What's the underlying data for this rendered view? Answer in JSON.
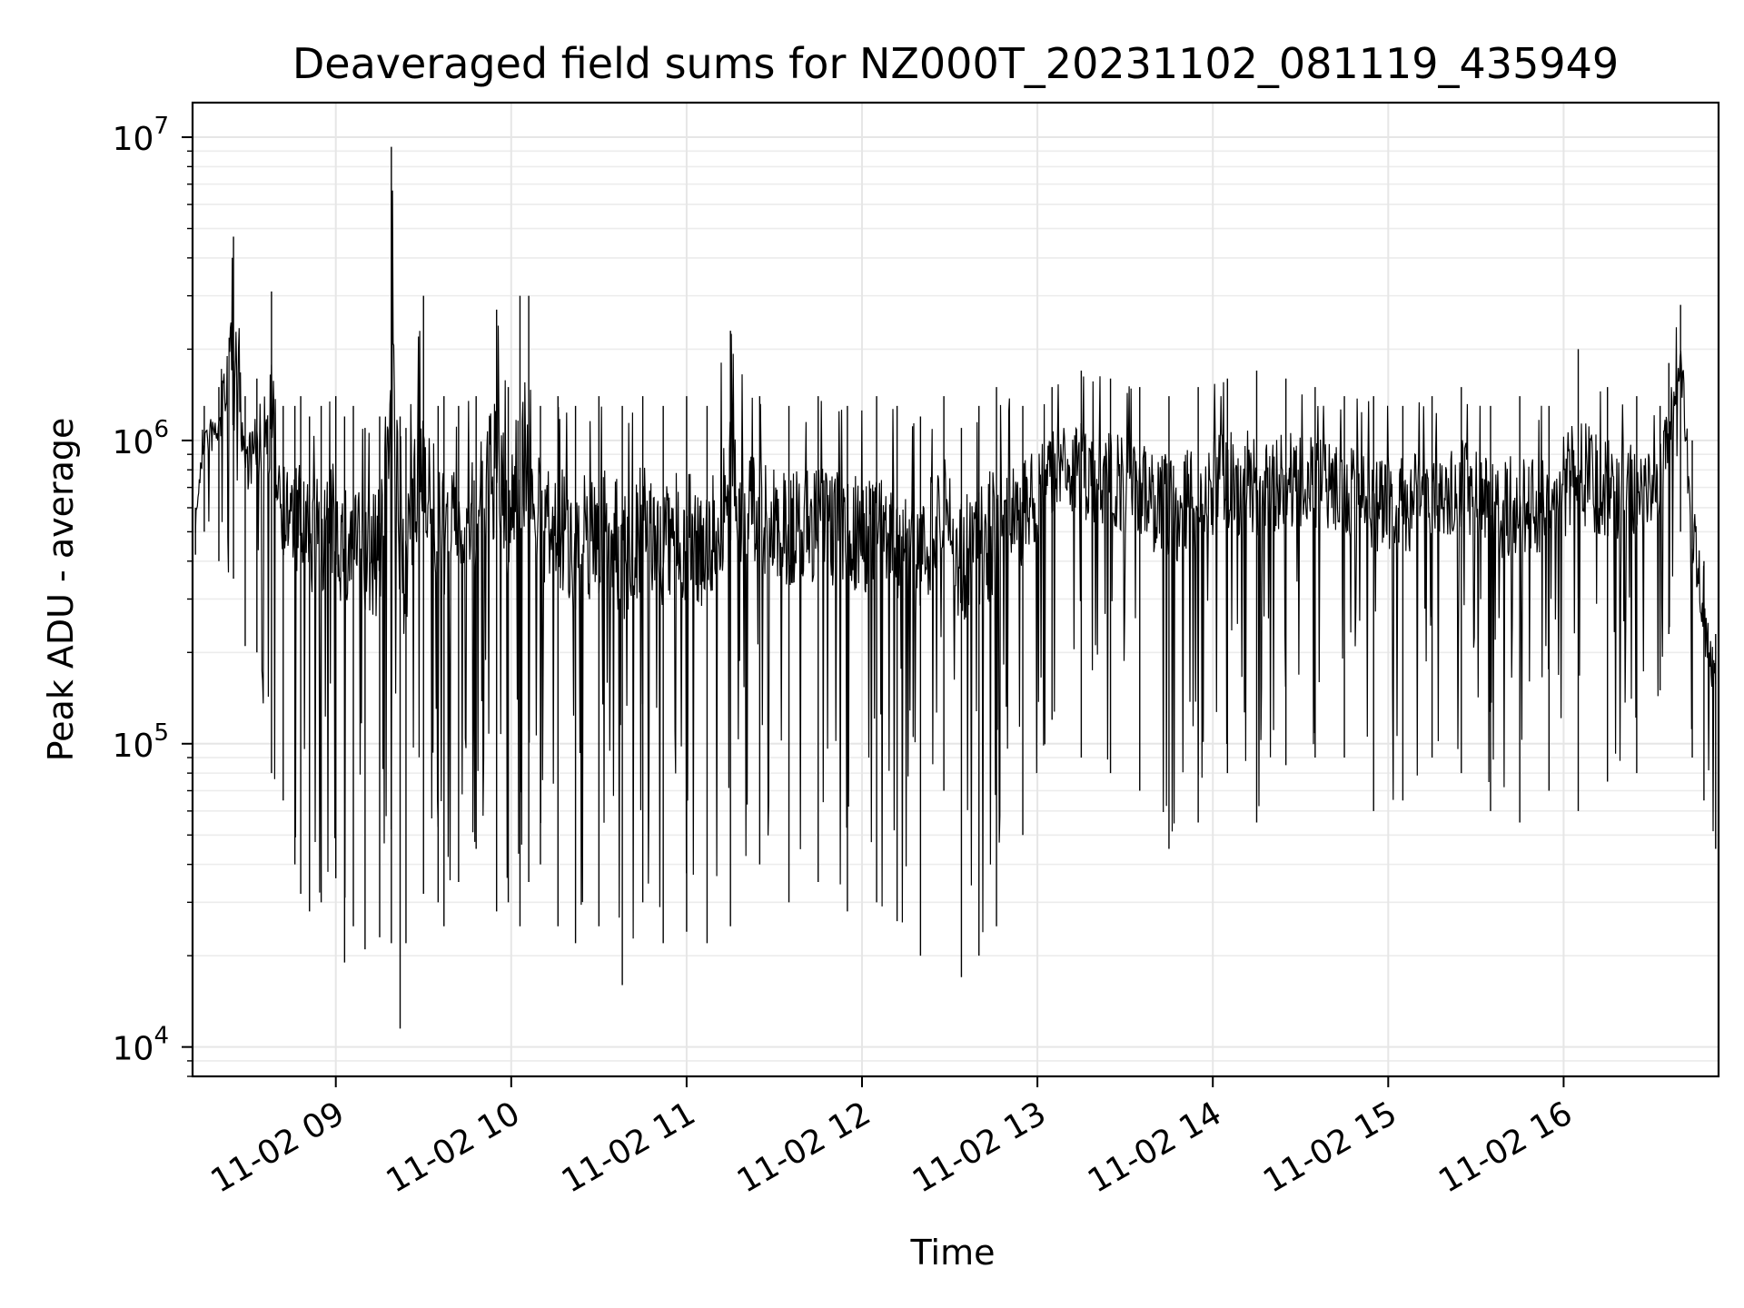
{
  "chart_data": {
    "type": "line",
    "title": "Deaveraged field sums for NZ000T_20231102_081119_435949",
    "xlabel": "Time",
    "ylabel": "Peak ADU - average",
    "yscale": "log",
    "xlim": [
      "2023-11-02 08:11",
      "2023-11-02 16:53"
    ],
    "ylim": [
      8000,
      13000000
    ],
    "x_ticks": [
      {
        "value": "2023-11-02 09:00",
        "label": "11-02 09"
      },
      {
        "value": "2023-11-02 10:00",
        "label": "11-02 10"
      },
      {
        "value": "2023-11-02 11:00",
        "label": "11-02 11"
      },
      {
        "value": "2023-11-02 12:00",
        "label": "11-02 12"
      },
      {
        "value": "2023-11-02 13:00",
        "label": "11-02 13"
      },
      {
        "value": "2023-11-02 14:00",
        "label": "11-02 14"
      },
      {
        "value": "2023-11-02 15:00",
        "label": "11-02 15"
      },
      {
        "value": "2023-11-02 16:00",
        "label": "11-02 16"
      }
    ],
    "y_ticks": [
      {
        "value": 10000,
        "base": "10",
        "exp": "4"
      },
      {
        "value": 100000,
        "base": "10",
        "exp": "5"
      },
      {
        "value": 1000000,
        "base": "10",
        "exp": "6"
      },
      {
        "value": 10000000,
        "base": "10",
        "exp": "7"
      }
    ],
    "grid": true,
    "line_color": "#000000",
    "series": [
      {
        "x": [
          "2023-11-02 08:12",
          "2023-11-02 08:15",
          "2023-11-02 08:20",
          "2023-11-02 08:25",
          "2023-11-02 08:29",
          "2023-11-02 08:33",
          "2023-11-02 08:38",
          "2023-11-02 08:42",
          "2023-11-02 08:46",
          "2023-11-02 08:48",
          "2023-11-02 08:51",
          "2023-11-02 08:55",
          "2023-11-02 09:00",
          "2023-11-02 09:03",
          "2023-11-02 09:06",
          "2023-11-02 09:10",
          "2023-11-02 09:15",
          "2023-11-02 09:19",
          "2023-11-02 09:22",
          "2023-11-02 09:24",
          "2023-11-02 09:30",
          "2023-11-02 09:35",
          "2023-11-02 09:37",
          "2023-11-02 09:42",
          "2023-11-02 09:48",
          "2023-11-02 09:55",
          "2023-11-02 09:59",
          "2023-11-02 10:03",
          "2023-11-02 10:06",
          "2023-11-02 10:10",
          "2023-11-02 10:16",
          "2023-11-02 10:22",
          "2023-11-02 10:30",
          "2023-11-02 10:38",
          "2023-11-02 10:45",
          "2023-11-02 10:52",
          "2023-11-02 11:00",
          "2023-11-02 11:07",
          "2023-11-02 11:15",
          "2023-11-02 11:25",
          "2023-11-02 11:35",
          "2023-11-02 11:45",
          "2023-11-02 11:55",
          "2023-11-02 12:05",
          "2023-11-02 12:12",
          "2023-11-02 12:20",
          "2023-11-02 12:28",
          "2023-11-02 12:34",
          "2023-11-02 12:40",
          "2023-11-02 12:46",
          "2023-11-02 12:55",
          "2023-11-02 13:05",
          "2023-11-02 13:15",
          "2023-11-02 13:25",
          "2023-11-02 13:35",
          "2023-11-02 13:45",
          "2023-11-02 13:55",
          "2023-11-02 14:05",
          "2023-11-02 14:15",
          "2023-11-02 14:25",
          "2023-11-02 14:35",
          "2023-11-02 14:45",
          "2023-11-02 14:55",
          "2023-11-02 15:05",
          "2023-11-02 15:15",
          "2023-11-02 15:25",
          "2023-11-02 15:35",
          "2023-11-02 15:45",
          "2023-11-02 15:55",
          "2023-11-02 16:05",
          "2023-11-02 16:15",
          "2023-11-02 16:25",
          "2023-11-02 16:33",
          "2023-11-02 16:36",
          "2023-11-02 16:40",
          "2023-11-02 16:44",
          "2023-11-02 16:48",
          "2023-11-02 16:52"
        ],
        "y_high": [
          600000,
          1300000,
          1500000,
          4700000,
          1400000,
          1600000,
          3100000,
          1300000,
          1300000,
          1400000,
          1200000,
          1300000,
          1400000,
          1200000,
          1300000,
          1100000,
          1200000,
          9300000,
          1200000,
          1100000,
          3000000,
          1300000,
          1400000,
          1300000,
          1400000,
          2700000,
          1500000,
          3000000,
          3000000,
          1300000,
          1400000,
          1300000,
          1400000,
          1300000,
          1400000,
          1300000,
          1400000,
          1300000,
          2300000,
          1400000,
          1300000,
          1400000,
          1300000,
          1400000,
          1300000,
          1200000,
          1400000,
          1100000,
          1300000,
          1500000,
          1300000,
          1500000,
          1700000,
          1600000,
          1500000,
          1400000,
          1500000,
          1600000,
          1700000,
          1600000,
          1500000,
          1400000,
          1400000,
          1300000,
          1400000,
          1500000,
          1300000,
          1400000,
          1300000,
          2000000,
          1500000,
          1400000,
          1300000,
          1800000,
          2800000,
          1000000,
          400000,
          230000
        ],
        "y_low": [
          420000,
          500000,
          400000,
          350000,
          210000,
          200000,
          80000,
          65000,
          40000,
          32000,
          28000,
          30000,
          36000,
          19000,
          25000,
          21000,
          23000,
          22000,
          11500,
          22000,
          32000,
          30000,
          25000,
          35000,
          45000,
          28000,
          30000,
          25000,
          35000,
          40000,
          25000,
          22000,
          25000,
          16000,
          30000,
          22000,
          24000,
          22000,
          25000,
          40000,
          30000,
          35000,
          28000,
          30000,
          26000,
          20000,
          70000,
          17000,
          20000,
          25000,
          50000,
          120000,
          90000,
          80000,
          70000,
          45000,
          55000,
          80000,
          55000,
          85000,
          90000,
          90000,
          60000,
          65000,
          90000,
          80000,
          60000,
          55000,
          70000,
          60000,
          75000,
          80000,
          150000,
          230000,
          500000,
          90000,
          65000,
          45000
        ]
      }
    ]
  }
}
